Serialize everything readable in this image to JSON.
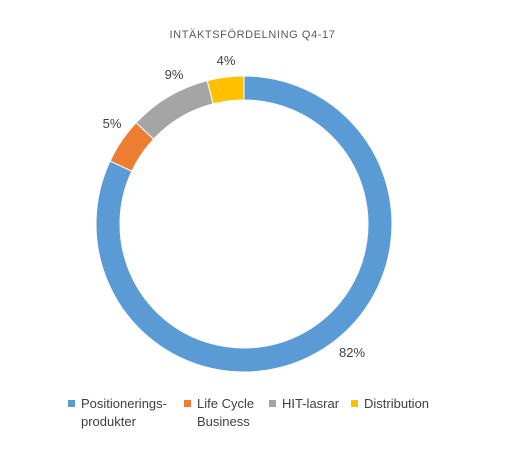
{
  "chart_data": {
    "type": "pie",
    "variant": "donut",
    "title": "INTÄKTSFÖRDELNING  Q4-17",
    "categories": [
      "Positionerings-produkter",
      "Life Cycle Business",
      "HIT-lasrar",
      "Distribution"
    ],
    "values": [
      82,
      5,
      9,
      4
    ],
    "data_labels": [
      "82%",
      "5%",
      "9%",
      "4%"
    ],
    "colors": [
      "#5b9bd5",
      "#ed7d31",
      "#a5a5a5",
      "#ffc000"
    ],
    "legend_position": "bottom"
  },
  "legend": {
    "items": [
      {
        "line1": "Positionerings-",
        "line2": "produkter"
      },
      {
        "line1": "Life Cycle",
        "line2": "Business"
      },
      {
        "line1": "HIT-lasrar",
        "line2": ""
      },
      {
        "line1": "Distribution",
        "line2": ""
      }
    ]
  }
}
